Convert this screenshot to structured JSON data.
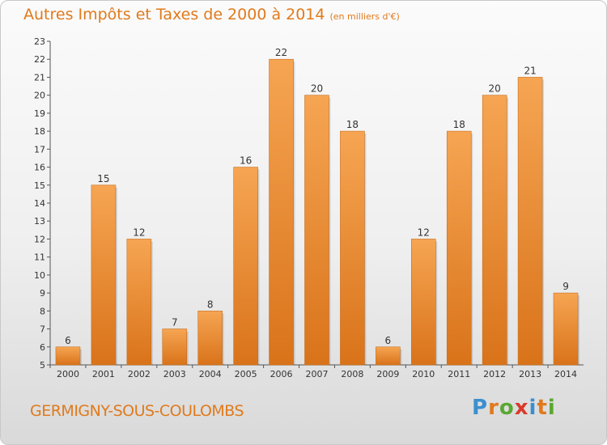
{
  "title": "Autres Impôts et Taxes de 2000 à 2014",
  "unit_label": "(en milliers d'€)",
  "location": "GERMIGNY-SOUS-COULOMBS",
  "logo": {
    "letters": [
      "P",
      "r",
      "o",
      "x",
      "i",
      "t",
      "i"
    ],
    "colors": [
      "#3a8fd0",
      "#e07a1c",
      "#5aa832",
      "#d93a2a",
      "#3a8fd0",
      "#e07a1c",
      "#5aa832"
    ]
  },
  "colors": {
    "bar_top": "#f6a553",
    "bar_bottom": "#d9731a",
    "title": "#e07a1c"
  },
  "chart_data": {
    "type": "bar",
    "categories": [
      "2000",
      "2001",
      "2002",
      "2003",
      "2004",
      "2005",
      "2006",
      "2007",
      "2008",
      "2009",
      "2010",
      "2011",
      "2012",
      "2013",
      "2014"
    ],
    "values": [
      6,
      15,
      12,
      7,
      8,
      16,
      22,
      20,
      18,
      6,
      12,
      18,
      20,
      21,
      9
    ],
    "title": "Autres Impôts et Taxes de 2000 à 2014",
    "xlabel": "",
    "ylabel": "",
    "ylim": [
      5,
      23
    ],
    "yticks": [
      5,
      6,
      7,
      8,
      9,
      10,
      11,
      12,
      13,
      14,
      15,
      16,
      17,
      18,
      19,
      20,
      21,
      22,
      23
    ],
    "grid": false,
    "data_labels": true
  }
}
